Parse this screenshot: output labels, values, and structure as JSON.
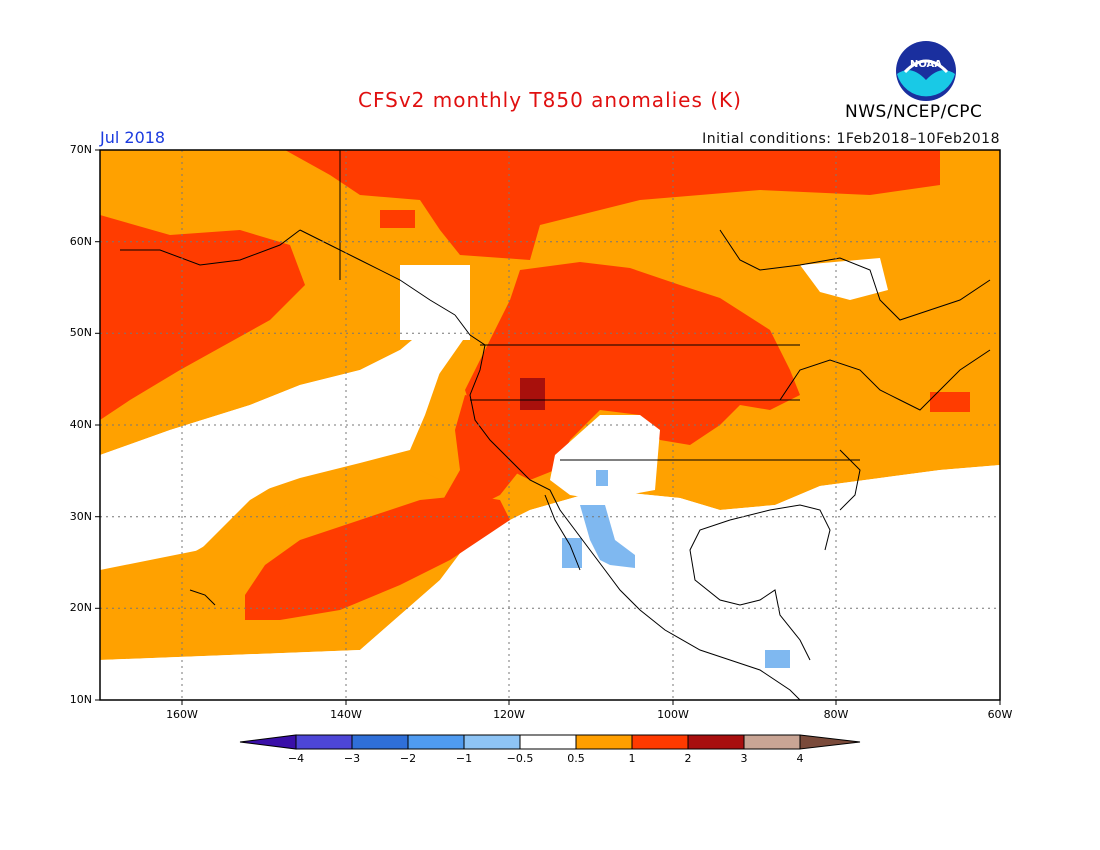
{
  "header": {
    "title": "CFSv2 monthly T850 anomalies (K)",
    "month": "Jul 2018",
    "initial_conditions": "Initial conditions: 1Feb2018–10Feb2018",
    "organization": "NWS/NCEP/CPC",
    "logo_text": "NOAA"
  },
  "axes": {
    "lat_labels": [
      "70N",
      "60N",
      "50N",
      "40N",
      "30N",
      "20N",
      "10N"
    ],
    "lon_labels": [
      "160W",
      "140W",
      "120W",
      "100W",
      "80W",
      "60W"
    ]
  },
  "colorbar": {
    "labels": [
      "−4",
      "−3",
      "−2",
      "−1",
      "−0.5",
      "0.5",
      "1",
      "2",
      "3",
      "4"
    ],
    "colors": [
      "#3a0fa8",
      "#4d46d6",
      "#2f6fd8",
      "#4f9bf0",
      "#8ec4f5",
      "#ffffff",
      "#ff9f00",
      "#ff3a00",
      "#a80f0f",
      "#c9a595",
      "#7a4a3a"
    ]
  },
  "map_colors": {
    "ocean_white": "#ffffff",
    "warm_0_5_1": "#ffa100",
    "warm_1_2": "#ff3c00",
    "warm_2_3": "#a8100c",
    "cool_m1_m0_5": "#7fb8f0",
    "coastline": "#000000"
  }
}
